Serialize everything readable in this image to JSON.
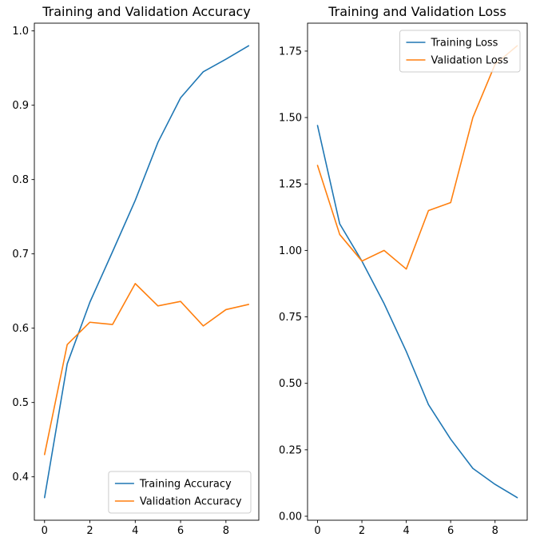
{
  "figure": {
    "background": "#ffffff"
  },
  "colors": {
    "training": "#1f77b4",
    "validation": "#ff7f0e",
    "legend_border": "#cccccc",
    "spine": "#000000"
  },
  "chart_data": [
    {
      "type": "line",
      "title": "Training and Validation Accuracy",
      "xlabel": "",
      "ylabel": "",
      "x": [
        0,
        1,
        2,
        3,
        4,
        5,
        6,
        7,
        8,
        9
      ],
      "series": [
        {
          "name": "Training Accuracy",
          "color": "#1f77b4",
          "values": [
            0.372,
            0.552,
            0.635,
            0.703,
            0.772,
            0.85,
            0.91,
            0.945,
            0.962,
            0.98
          ]
        },
        {
          "name": "Validation Accuracy",
          "color": "#ff7f0e",
          "values": [
            0.43,
            0.578,
            0.608,
            0.605,
            0.66,
            0.63,
            0.636,
            0.603,
            0.625,
            0.632
          ]
        }
      ],
      "xlim": [
        -0.45,
        9.45
      ],
      "ylim": [
        0.3416,
        1.0104
      ],
      "xticks": {
        "values": [
          0,
          2,
          4,
          6,
          8
        ],
        "labels": [
          "0",
          "2",
          "4",
          "6",
          "8"
        ]
      },
      "yticks": {
        "values": [
          0.4,
          0.5,
          0.6,
          0.7,
          0.8,
          0.9,
          1.0
        ],
        "labels": [
          "0.4",
          "0.5",
          "0.6",
          "0.7",
          "0.8",
          "0.9",
          "1.0"
        ]
      },
      "legend": {
        "position": "lower right",
        "entries": [
          "Training Accuracy",
          "Validation Accuracy"
        ]
      },
      "grid": false
    },
    {
      "type": "line",
      "title": "Training and Validation Loss",
      "xlabel": "",
      "ylabel": "",
      "x": [
        0,
        1,
        2,
        3,
        4,
        5,
        6,
        7,
        8,
        9
      ],
      "series": [
        {
          "name": "Training Loss",
          "color": "#1f77b4",
          "values": [
            1.47,
            1.1,
            0.96,
            0.8,
            0.62,
            0.42,
            0.29,
            0.18,
            0.12,
            0.07
          ]
        },
        {
          "name": "Validation Loss",
          "color": "#ff7f0e",
          "values": [
            1.32,
            1.06,
            0.96,
            1.0,
            0.93,
            1.15,
            1.18,
            1.5,
            1.7,
            1.77
          ]
        }
      ],
      "xlim": [
        -0.45,
        9.45
      ],
      "ylim": [
        -0.015,
        1.855
      ],
      "xticks": {
        "values": [
          0,
          2,
          4,
          6,
          8
        ],
        "labels": [
          "0",
          "2",
          "4",
          "6",
          "8"
        ]
      },
      "yticks": {
        "values": [
          0.0,
          0.25,
          0.5,
          0.75,
          1.0,
          1.25,
          1.5,
          1.75
        ],
        "labels": [
          "0.00",
          "0.25",
          "0.50",
          "0.75",
          "1.00",
          "1.25",
          "1.50",
          "1.75"
        ]
      },
      "legend": {
        "position": "upper right",
        "entries": [
          "Training Loss",
          "Validation Loss"
        ]
      },
      "grid": false
    }
  ]
}
